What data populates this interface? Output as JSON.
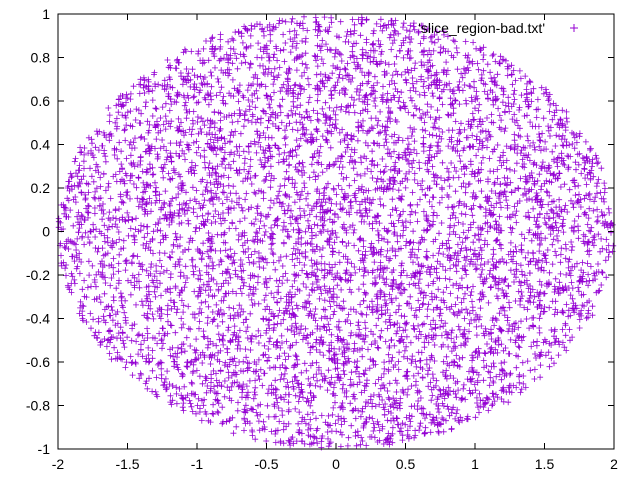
{
  "chart_data": {
    "type": "scatter",
    "title": "",
    "xlabel": "",
    "ylabel": "",
    "xlim": [
      -2,
      2
    ],
    "ylim": [
      -1,
      1
    ],
    "x_ticks": [
      "-2",
      "-1.5",
      "-1",
      "-0.5",
      "0",
      "0.5",
      "1",
      "1.5",
      "2"
    ],
    "y_ticks": [
      "-1",
      "-0.8",
      "-0.6",
      "-0.4",
      "-0.2",
      "0",
      "0.2",
      "0.4",
      "0.6",
      "0.8",
      "1"
    ],
    "grid": false,
    "legend_position": "top-right",
    "series": [
      {
        "name": "'slice_region-bad.txt'",
        "marker": "+",
        "color": "#9400d3",
        "region": "ellipse x^2/4 + y^2 <= 1, uniformly filled",
        "center": [
          0,
          0
        ],
        "semi_axes": [
          2,
          1
        ],
        "point_count_approx": 6000
      }
    ]
  }
}
